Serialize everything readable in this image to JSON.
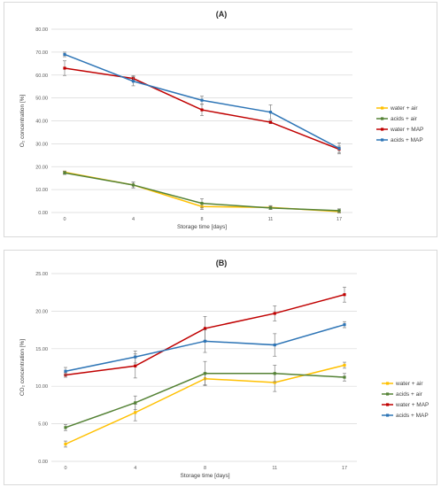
{
  "chart_data": [
    {
      "type": "line",
      "title": "(A)",
      "xlabel": "Storage time [days]",
      "ylabel": "O₂ concentration [%]",
      "categories": [
        "0",
        "4",
        "8",
        "11",
        "17"
      ],
      "ylim": [
        0,
        80
      ],
      "yticks": [
        "0.00",
        "10.00",
        "20.00",
        "30.00",
        "40.00",
        "50.00",
        "60.00",
        "70.00",
        "80.00"
      ],
      "grid": true,
      "legend": "right",
      "series": [
        {
          "name": "water + air",
          "color": "#ffc000",
          "values": [
            17.6,
            12.0,
            2.6,
            2.2,
            0.4
          ],
          "errors": [
            0.5,
            1.2,
            1.3,
            0.8,
            0.6
          ]
        },
        {
          "name": "acids + air",
          "color": "#548235",
          "values": [
            17.3,
            12.0,
            4.0,
            2.0,
            0.8
          ],
          "errors": [
            0.7,
            1.3,
            2.0,
            0.7,
            0.8
          ]
        },
        {
          "name": "water + MAP",
          "color": "#c00000",
          "values": [
            63.0,
            58.5,
            44.8,
            39.4,
            27.6
          ],
          "errors": [
            3.2,
            1.2,
            2.5,
            0.6,
            1.4
          ]
        },
        {
          "name": "acids + MAP",
          "color": "#2e75b6",
          "values": [
            69.0,
            57.3,
            49.0,
            43.8,
            28.0
          ],
          "errors": [
            1.0,
            2.0,
            1.8,
            3.2,
            2.4
          ]
        }
      ]
    },
    {
      "type": "line",
      "title": "(B)",
      "xlabel": "Storage time [days]",
      "ylabel": "CO₂ concentration [%]",
      "categories": [
        "0",
        "4",
        "8",
        "11",
        "17"
      ],
      "ylim": [
        0,
        25
      ],
      "yticks": [
        "0.00",
        "5.00",
        "10.00",
        "15.00",
        "20.00",
        "25.00"
      ],
      "grid": true,
      "legend": "right",
      "series": [
        {
          "name": "water + air",
          "color": "#ffc000",
          "values": [
            2.3,
            6.5,
            11.0,
            10.5,
            12.8
          ],
          "errors": [
            0.4,
            1.1,
            0.8,
            1.2,
            0.4
          ]
        },
        {
          "name": "acids + air",
          "color": "#548235",
          "values": [
            4.5,
            7.8,
            11.7,
            11.7,
            11.2
          ],
          "errors": [
            0.4,
            0.9,
            1.6,
            1.1,
            0.5
          ]
        },
        {
          "name": "water + MAP",
          "color": "#c00000",
          "values": [
            11.5,
            12.7,
            17.7,
            19.7,
            22.2
          ],
          "errors": [
            0.3,
            1.6,
            1.6,
            1.0,
            1.0
          ]
        },
        {
          "name": "acids + MAP",
          "color": "#2e75b6",
          "values": [
            12.0,
            13.9,
            16.0,
            15.5,
            18.2
          ],
          "errors": [
            0.5,
            0.8,
            1.5,
            1.5,
            0.4
          ]
        }
      ]
    }
  ]
}
